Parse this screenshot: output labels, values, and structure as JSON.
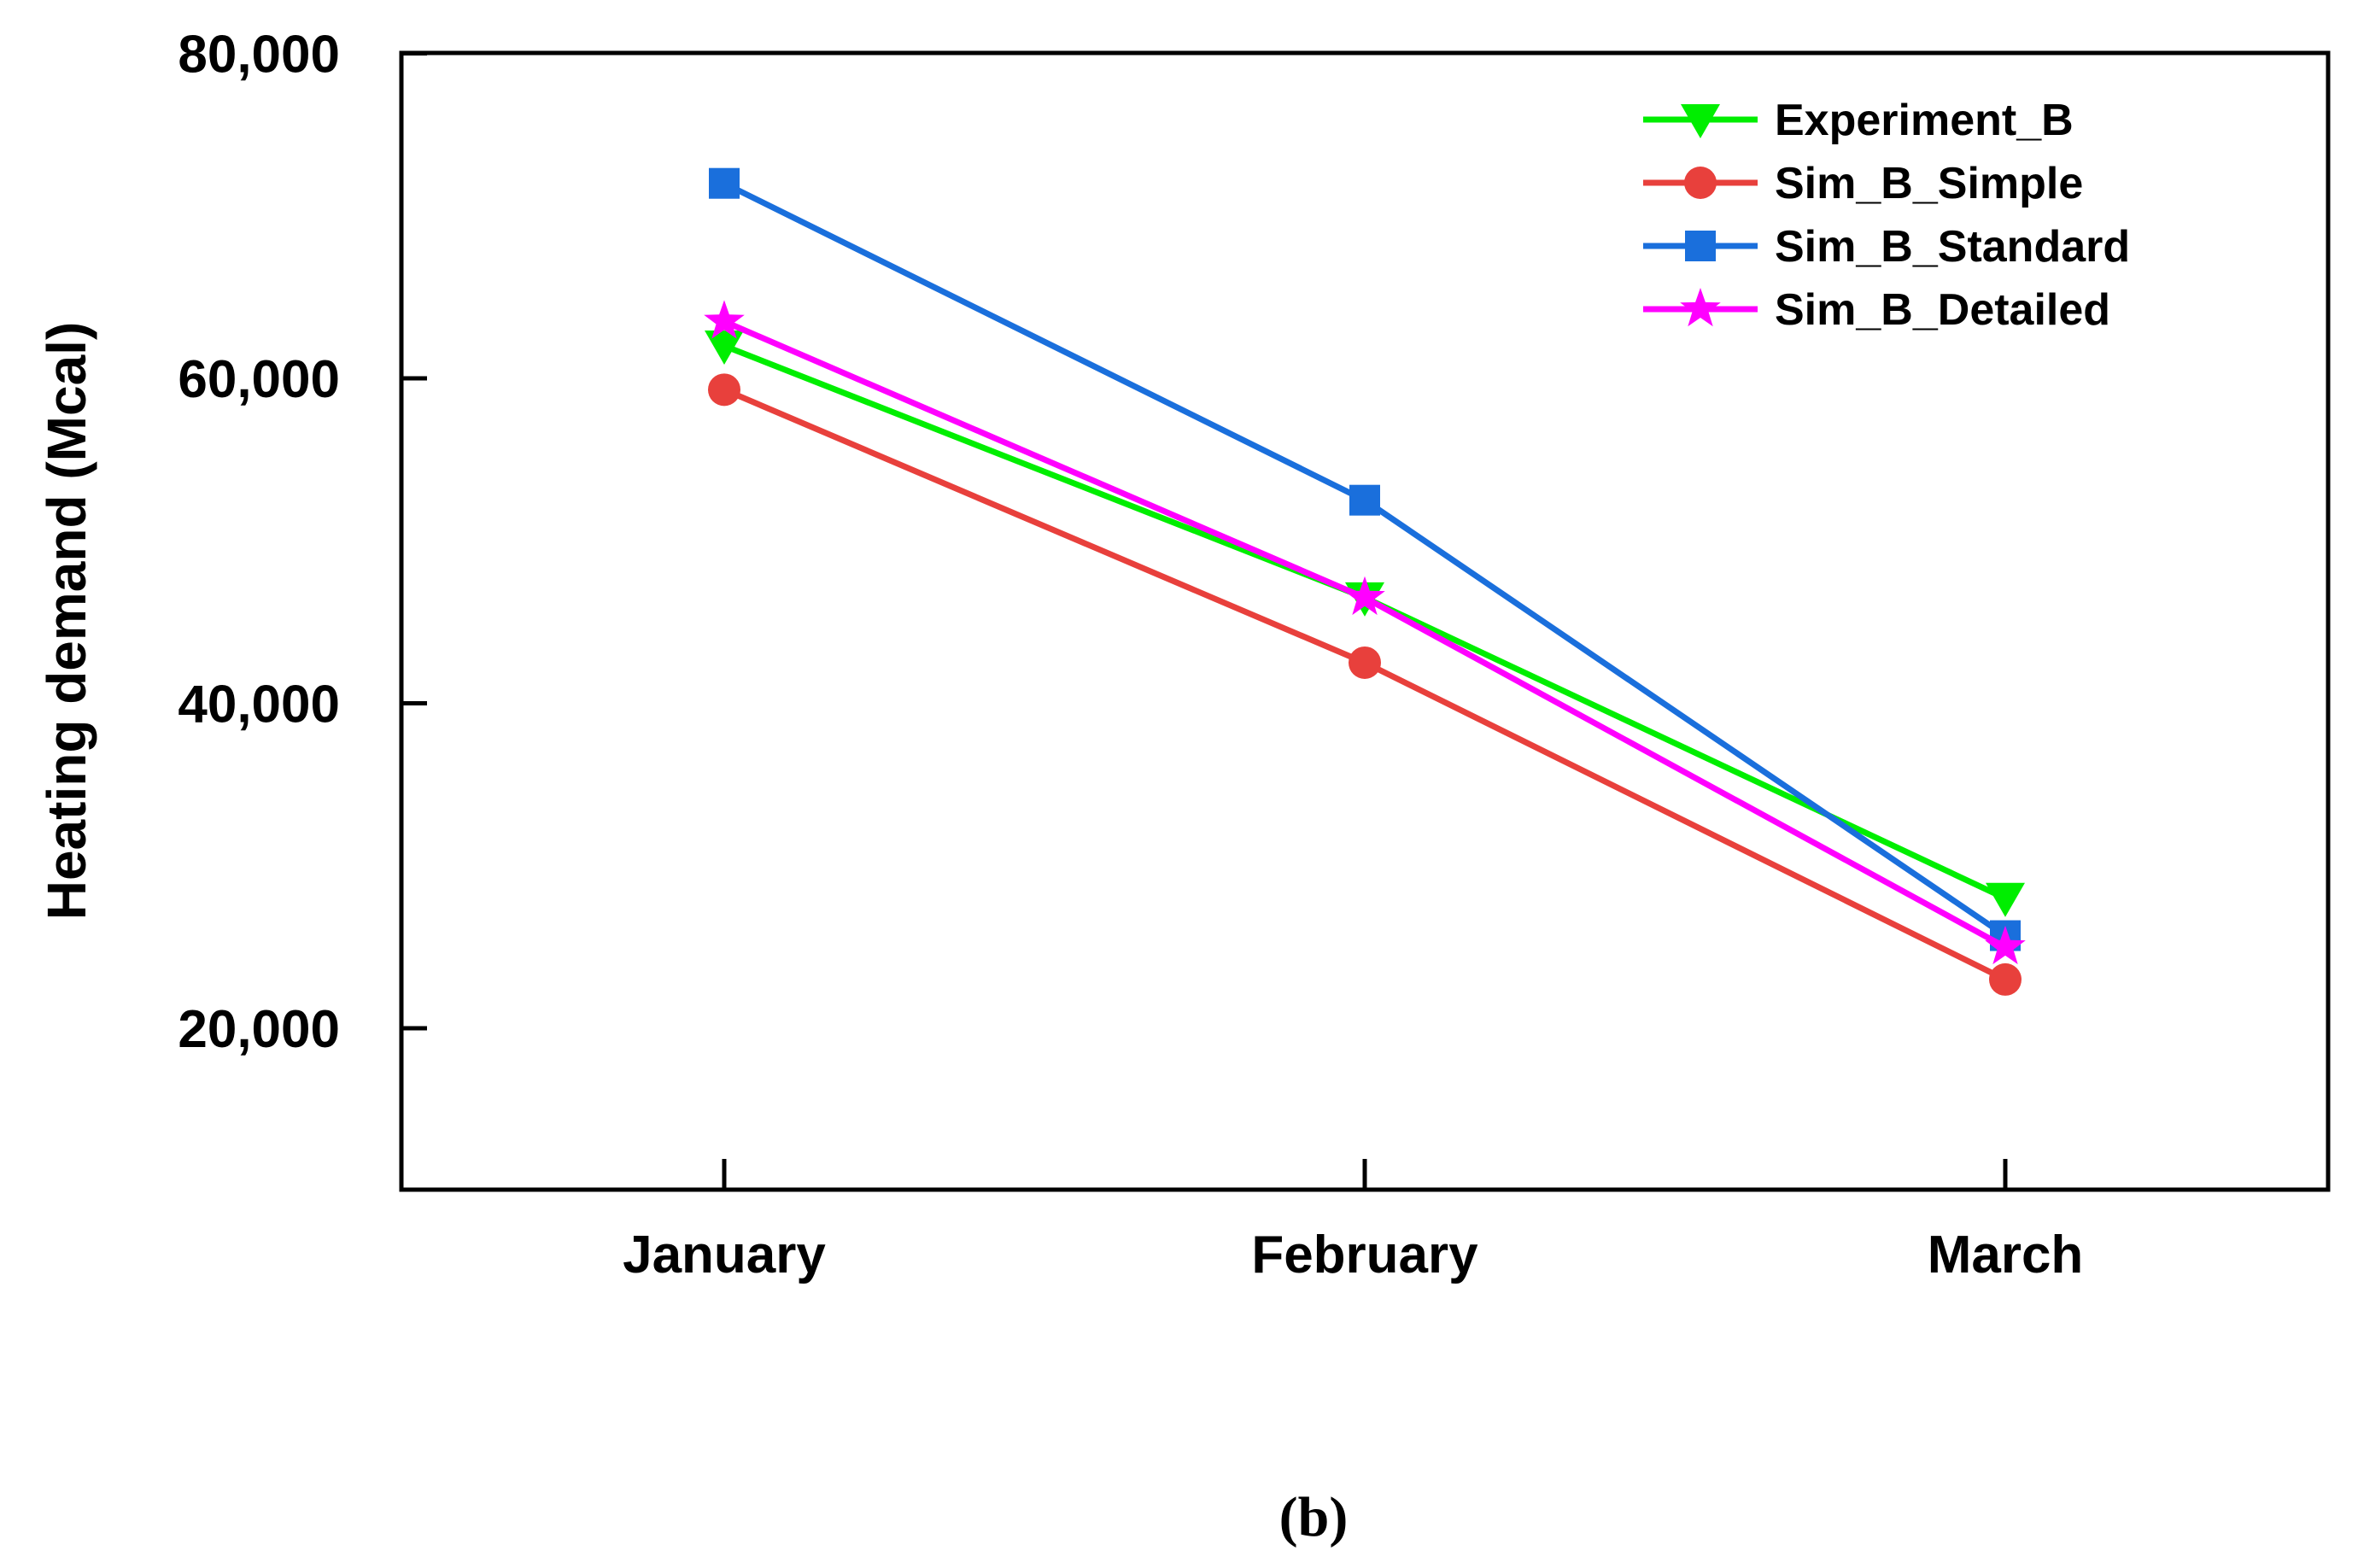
{
  "chart_data": {
    "type": "line",
    "title": "",
    "xlabel": "",
    "ylabel": "Heating demand (Mcal)",
    "categories": [
      "January",
      "February",
      "March"
    ],
    "ylim": [
      10000,
      80000
    ],
    "yticks": [
      20000,
      40000,
      60000,
      80000
    ],
    "ytick_labels": [
      "20,000",
      "40,000",
      "60,000",
      "80,000"
    ],
    "grid": false,
    "legend_position": "top-right",
    "series": [
      {
        "name": "Experiment_B",
        "values": [
          62000,
          46500,
          28000
        ],
        "color": "#00ee00",
        "marker": "triangle-down"
      },
      {
        "name": "Sim_B_Simple",
        "values": [
          59300,
          42500,
          23000
        ],
        "color": "#e8403c",
        "marker": "circle"
      },
      {
        "name": "Sim_B_Standard",
        "values": [
          72000,
          52500,
          25700
        ],
        "color": "#1a6fdc",
        "marker": "square"
      },
      {
        "name": "Sim_B_Detailed",
        "values": [
          63500,
          46500,
          25000
        ],
        "color": "#ff00ff",
        "marker": "star"
      }
    ],
    "panel_label": "(b)"
  }
}
